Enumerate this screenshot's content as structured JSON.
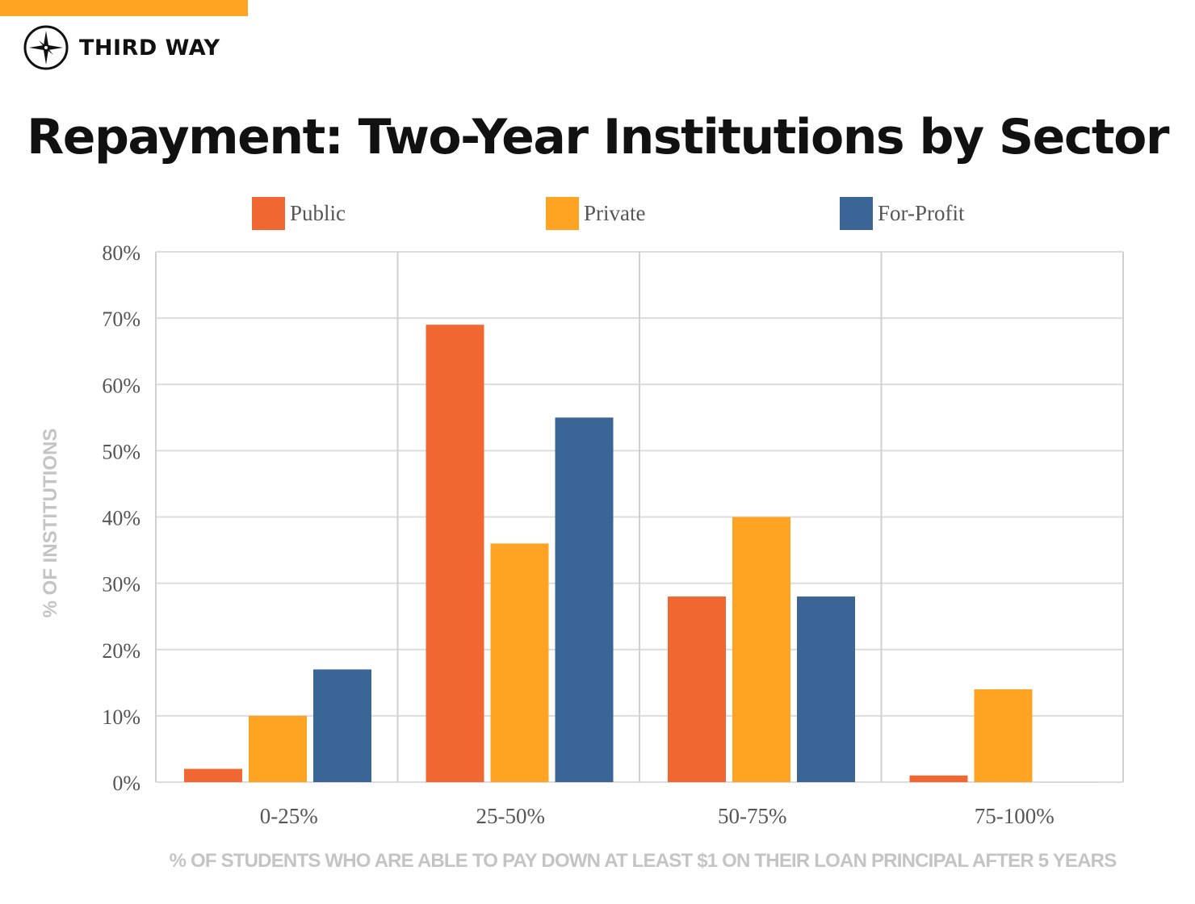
{
  "brand": {
    "name": "THIRD WAY",
    "accent": "#ffa422"
  },
  "chart_data": {
    "type": "bar",
    "title": "Repayment: Two-Year Institutions by Sector",
    "xlabel": "% OF STUDENTS WHO ARE ABLE TO PAY DOWN AT LEAST $1 ON THEIR LOAN PRINCIPAL AFTER 5 YEARS",
    "ylabel": "% OF INSTITUTIONS",
    "categories": [
      "0-25%",
      "25-50%",
      "50-75%",
      "75-100%"
    ],
    "yticks": [
      "0%",
      "10%",
      "20%",
      "30%",
      "40%",
      "50%",
      "60%",
      "70%",
      "80%"
    ],
    "ylim": [
      0,
      80
    ],
    "grid": true,
    "legend_position": "top",
    "series": [
      {
        "name": "Public",
        "color": "#f06732",
        "values": [
          2,
          69,
          28,
          1
        ]
      },
      {
        "name": "Private",
        "color": "#ffa422",
        "values": [
          10,
          36,
          40,
          14
        ]
      },
      {
        "name": "For-Profit",
        "color": "#3b6597",
        "values": [
          17,
          55,
          28,
          0
        ]
      }
    ]
  }
}
